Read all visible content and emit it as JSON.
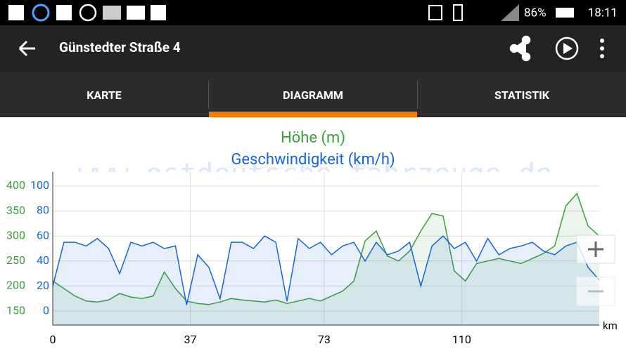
{
  "status_bar": {
    "battery": "86%",
    "time": "18:11"
  },
  "toolbar": {
    "title": "Günstedter Straße 4"
  },
  "tabs": [
    "KARTE",
    "DIAGRAMM",
    "STATISTIK"
  ],
  "chart_data": {
    "type": "line",
    "title": "Höhe (m)",
    "subtitle": "Geschwindigkeit (km/h)",
    "watermark": "www.ostdeutsche-fahrzeuge.de",
    "x_label": "km",
    "x": [
      0,
      3,
      6,
      9,
      12,
      15,
      18,
      21,
      24,
      27,
      30,
      33,
      36,
      39,
      42,
      45,
      48,
      51,
      54,
      57,
      60,
      63,
      66,
      69,
      72,
      75,
      78,
      81,
      84,
      87,
      90,
      93,
      96,
      99,
      102,
      105,
      108,
      111,
      114,
      117,
      120,
      123,
      126,
      129,
      132,
      135,
      138,
      141,
      144,
      147
    ],
    "xlim": [
      0,
      147
    ],
    "xticks": [
      0,
      37,
      73,
      110
    ],
    "ylim": [
      122,
      428
    ],
    "yticks": [
      150,
      200,
      250,
      300,
      350,
      400
    ],
    "y2lim": [
      -11,
      111
    ],
    "y2ticks": [
      0,
      20,
      40,
      60,
      80,
      100
    ],
    "grid": true,
    "series": [
      {
        "name": "Höhe (m)",
        "color": "#3e9e3e",
        "axis": "y",
        "values": [
          210,
          195,
          180,
          170,
          168,
          172,
          185,
          178,
          175,
          180,
          228,
          195,
          170,
          165,
          163,
          168,
          175,
          172,
          170,
          168,
          172,
          165,
          170,
          175,
          170,
          180,
          190,
          210,
          290,
          310,
          260,
          250,
          270,
          310,
          345,
          340,
          230,
          210,
          245,
          250,
          255,
          250,
          245,
          255,
          265,
          280,
          360,
          385,
          320,
          300
        ]
      },
      {
        "name": "Geschwindigkeit (km/h)",
        "color": "#1565d8",
        "axis": "y2",
        "values": [
          20,
          55,
          55,
          52,
          58,
          50,
          30,
          55,
          52,
          55,
          50,
          52,
          5,
          45,
          35,
          10,
          55,
          55,
          50,
          60,
          55,
          8,
          58,
          50,
          55,
          45,
          52,
          55,
          40,
          55,
          45,
          48,
          55,
          20,
          52,
          60,
          50,
          55,
          40,
          58,
          45,
          50,
          52,
          55,
          48,
          45,
          52,
          55,
          35,
          25
        ]
      }
    ]
  }
}
